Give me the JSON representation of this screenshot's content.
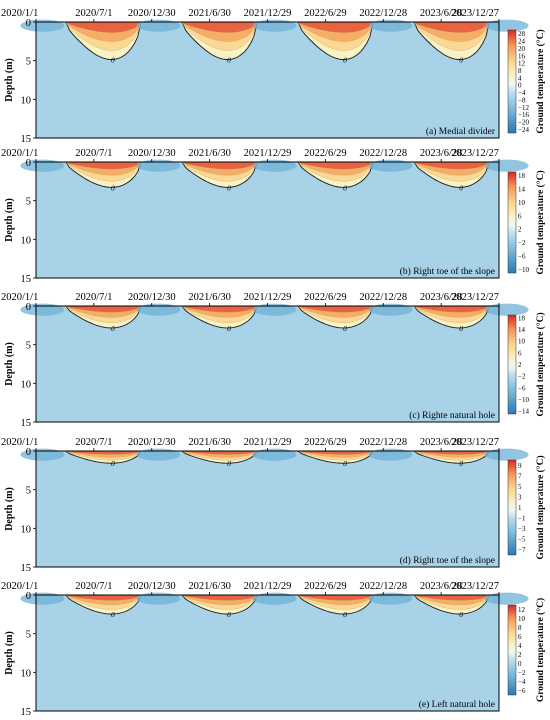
{
  "chart_data": [
    {
      "type": "heatmap",
      "panel_label": "(a) Medial divider",
      "x_tick_labels": [
        "2020/1/1",
        "2020/7/1",
        "2020/12/30",
        "2021/6/30",
        "2021/12/29",
        "2022/6/29",
        "2022/12/28",
        "2023/6/28",
        "2023/12/27"
      ],
      "ylabel": "Depth (m)",
      "y_ticks": [
        0,
        5,
        10,
        15
      ],
      "ylim": [
        0,
        15
      ],
      "zero_contour_label": "0",
      "colorbar": {
        "label": "Ground temperature (°C)",
        "min": -26,
        "max": 30,
        "tick_values": [
          28,
          24,
          20,
          16,
          12,
          8,
          4,
          0,
          -4,
          -8,
          -12,
          -16,
          -20,
          -24
        ],
        "tick_labels": [
          "28",
          "24",
          "20",
          "16",
          "12",
          "8",
          "4",
          "0",
          "−4",
          "−8",
          "−12",
          "−16",
          "−20",
          "−24"
        ]
      },
      "summer_peak_c": 28,
      "winter_min_c": -24,
      "zero_isotherm_max_depth_m": 7.7
    },
    {
      "type": "heatmap",
      "panel_label": "(b) Right toe of the slope",
      "x_tick_labels": [
        "2020/1/1",
        "2020/7/1",
        "2020/12/30",
        "2021/6/30",
        "2021/12/29",
        "2022/6/29",
        "2022/12/28",
        "2023/6/28",
        "2023/12/27"
      ],
      "ylabel": "Depth (m)",
      "y_ticks": [
        0,
        5,
        10,
        15
      ],
      "ylim": [
        0,
        15
      ],
      "zero_contour_label": "0",
      "colorbar": {
        "label": "Ground temperature (°C)",
        "min": -11,
        "max": 19,
        "tick_values": [
          18,
          14,
          10,
          6,
          2,
          -2,
          -6,
          -10
        ],
        "tick_labels": [
          "18",
          "14",
          "10",
          "6",
          "2",
          "−2",
          "−6",
          "−10"
        ]
      },
      "summer_peak_c": 18,
      "winter_min_c": -10,
      "zero_isotherm_max_depth_m": 5.2
    },
    {
      "type": "heatmap",
      "panel_label": "(c) Righte natural hole",
      "x_tick_labels": [
        "2020/1/1",
        "2020/7/1",
        "2020/12/30",
        "2021/6/30",
        "2021/12/29",
        "2022/6/29",
        "2022/12/28",
        "2023/6/28",
        "2023/12/27"
      ],
      "ylabel": "Depth (m)",
      "y_ticks": [
        0,
        5,
        10,
        15
      ],
      "ylim": [
        0,
        15
      ],
      "zero_contour_label": "0",
      "colorbar": {
        "label": "Ground temperature (°C)",
        "min": -15,
        "max": 19,
        "tick_values": [
          18,
          14,
          10,
          6,
          2,
          -2,
          -6,
          -10,
          -14
        ],
        "tick_labels": [
          "18",
          "14",
          "10",
          "6",
          "2",
          "−2",
          "−6",
          "−10",
          "−14"
        ]
      },
      "summer_peak_c": 18,
      "winter_min_c": -14,
      "zero_isotherm_max_depth_m": 4.5
    },
    {
      "type": "heatmap",
      "panel_label": "(d) Right toe of the slope",
      "x_tick_labels": [
        "2020/1/1",
        "2020/7/1",
        "2020/12/30",
        "2021/6/30",
        "2021/12/29",
        "2022/6/29",
        "2022/12/28",
        "2023/6/28",
        "2023/12/27"
      ],
      "ylabel": "Depth (m)",
      "y_ticks": [
        0,
        5,
        10,
        15
      ],
      "ylim": [
        0,
        15
      ],
      "zero_contour_label": "0",
      "colorbar": {
        "label": "Ground temperature (°C)",
        "min": -8,
        "max": 10,
        "tick_values": [
          9,
          7,
          5,
          3,
          1,
          -1,
          -3,
          -5,
          -7
        ],
        "tick_labels": [
          "9",
          "7",
          "5",
          "3",
          "1",
          "−1",
          "−3",
          "−5",
          "−7"
        ]
      },
      "summer_peak_c": 9,
      "winter_min_c": -7,
      "zero_isotherm_max_depth_m": 2.5
    },
    {
      "type": "heatmap",
      "panel_label": "(e) Left natural hole",
      "x_tick_labels": [
        "2020/1/1",
        "2020/7/1",
        "2020/12/30",
        "2021/6/30",
        "2021/12/29",
        "2022/6/29",
        "2022/12/28",
        "2023/6/28",
        "2023/12/27"
      ],
      "ylabel": "Depth (m)",
      "y_ticks": [
        0,
        5,
        10,
        15
      ],
      "ylim": [
        0,
        15
      ],
      "zero_contour_label": "0",
      "colorbar": {
        "label": "Ground temperature (°C)",
        "min": -7,
        "max": 13,
        "tick_values": [
          12,
          10,
          8,
          6,
          4,
          2,
          0,
          -2,
          -4,
          -6
        ],
        "tick_labels": [
          "12",
          "10",
          "8",
          "6",
          "4",
          "2",
          "0",
          "−2",
          "−4",
          "−6"
        ]
      },
      "summer_peak_c": 12,
      "winter_min_c": -6,
      "zero_isotherm_max_depth_m": 3.9
    }
  ]
}
